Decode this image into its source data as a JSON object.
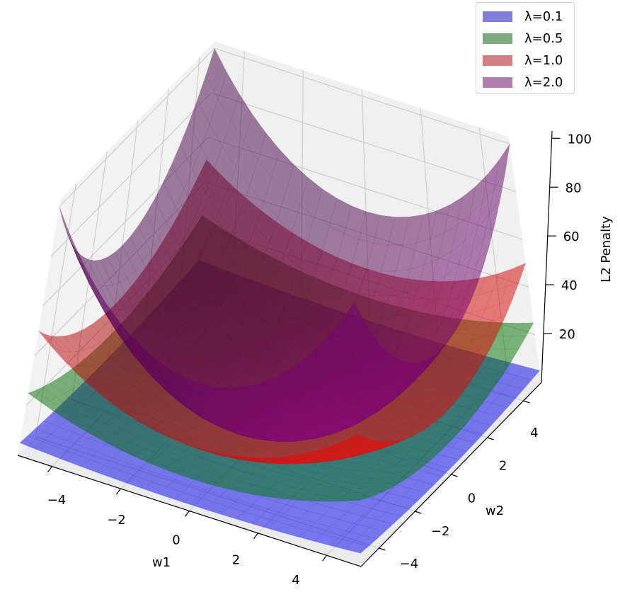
{
  "chart_data": {
    "type": "surface3d",
    "function": "lambda * (w1^2 + w2^2)",
    "xlabel": "w1",
    "ylabel": "w2",
    "zlabel": "L2 Penalty",
    "xlim": [
      -5,
      5
    ],
    "ylim": [
      -5,
      5
    ],
    "zlim": [
      0,
      103
    ],
    "xticks": [
      -4,
      -2,
      0,
      2,
      4
    ],
    "yticks": [
      -4,
      -2,
      0,
      2,
      4
    ],
    "zticks": [
      20,
      40,
      60,
      80,
      100
    ],
    "xtick_labels": [
      "−4",
      "−2",
      "0",
      "2",
      "4"
    ],
    "ytick_labels": [
      "−4",
      "−2",
      "0",
      "2",
      "4"
    ],
    "ztick_labels": [
      "20",
      "40",
      "60",
      "80",
      "100"
    ],
    "grid": true,
    "legend_position": "top-right",
    "series": [
      {
        "name": "λ=0.1",
        "lambda": 0.1,
        "color": "#0000ff",
        "legend_color": "#7f7fdb"
      },
      {
        "name": "λ=0.5",
        "lambda": 0.5,
        "color": "#008000",
        "legend_color": "#7faa7f"
      },
      {
        "name": "λ=1.0",
        "lambda": 1.0,
        "color": "#ff0000",
        "legend_color": "#d47f7f"
      },
      {
        "name": "λ=2.0",
        "lambda": 2.0,
        "color": "#800080",
        "legend_color": "#b07fb0"
      }
    ],
    "alpha": 0.5
  }
}
